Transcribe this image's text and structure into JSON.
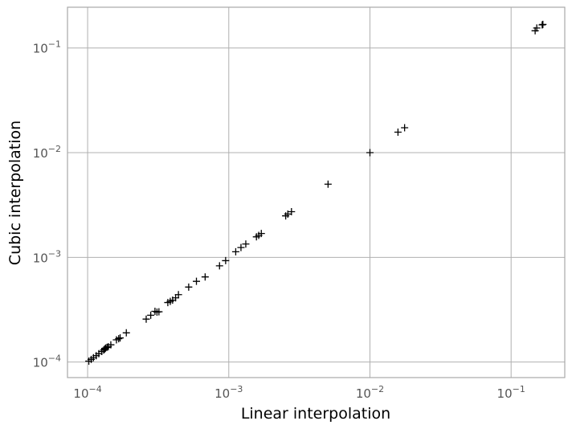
{
  "chart_data": {
    "type": "scatter",
    "xlabel": "Linear interpolation",
    "ylabel": "Cubic interpolation",
    "xscale": "log",
    "yscale": "log",
    "xlim": [
      7.2e-05,
      0.24
    ],
    "ylim": [
      7.1e-05,
      0.245
    ],
    "grid": true,
    "marker": "+",
    "marker_color": "#000000",
    "x_ticks": [
      {
        "base": "10",
        "exp": "−4",
        "value": 0.0001
      },
      {
        "base": "10",
        "exp": "−3",
        "value": 0.001
      },
      {
        "base": "10",
        "exp": "−2",
        "value": 0.01
      },
      {
        "base": "10",
        "exp": "−1",
        "value": 0.1
      }
    ],
    "y_ticks": [
      {
        "base": "10",
        "exp": "−4",
        "value": 0.0001
      },
      {
        "base": "10",
        "exp": "−3",
        "value": 0.001
      },
      {
        "base": "10",
        "exp": "−2",
        "value": 0.01
      },
      {
        "base": "10",
        "exp": "−1",
        "value": 0.1
      }
    ],
    "points": [
      [
        0.000102,
        0.000102
      ],
      [
        0.000106,
        0.000106
      ],
      [
        0.00011,
        0.00011
      ],
      [
        0.000115,
        0.000115
      ],
      [
        0.00012,
        0.00012
      ],
      [
        0.000126,
        0.000126
      ],
      [
        0.00013,
        0.00013
      ],
      [
        0.000132,
        0.000133
      ],
      [
        0.000134,
        0.000136
      ],
      [
        0.000137,
        0.000138
      ],
      [
        0.00014,
        0.00014
      ],
      [
        0.000146,
        0.000146
      ],
      [
        0.00016,
        0.000163
      ],
      [
        0.000166,
        0.000167
      ],
      [
        0.00017,
        0.00017
      ],
      [
        0.000188,
        0.00019
      ],
      [
        0.00026,
        0.000257
      ],
      [
        0.00028,
        0.00028
      ],
      [
        0.0003,
        0.000305
      ],
      [
        0.00031,
        0.0003
      ],
      [
        0.00032,
        0.000302
      ],
      [
        0.00037,
        0.00037
      ],
      [
        0.000385,
        0.00038
      ],
      [
        0.0004,
        0.00039
      ],
      [
        0.00042,
        0.00041
      ],
      [
        0.00044,
        0.00044
      ],
      [
        0.00052,
        0.00052
      ],
      [
        0.00059,
        0.00059
      ],
      [
        0.00068,
        0.00065
      ],
      [
        0.00086,
        0.00083
      ],
      [
        0.00095,
        0.00093
      ],
      [
        0.00112,
        0.00113
      ],
      [
        0.00122,
        0.00124
      ],
      [
        0.00132,
        0.00134
      ],
      [
        0.00157,
        0.00157
      ],
      [
        0.00163,
        0.00162
      ],
      [
        0.0017,
        0.00169
      ],
      [
        0.00253,
        0.00249
      ],
      [
        0.00262,
        0.00259
      ],
      [
        0.00278,
        0.00273
      ],
      [
        0.00505,
        0.005
      ],
      [
        0.01,
        0.01
      ],
      [
        0.0158,
        0.0157
      ],
      [
        0.0176,
        0.0173
      ],
      [
        0.148,
        0.146
      ],
      [
        0.152,
        0.155
      ],
      [
        0.166,
        0.166
      ],
      [
        0.168,
        0.168
      ]
    ]
  }
}
